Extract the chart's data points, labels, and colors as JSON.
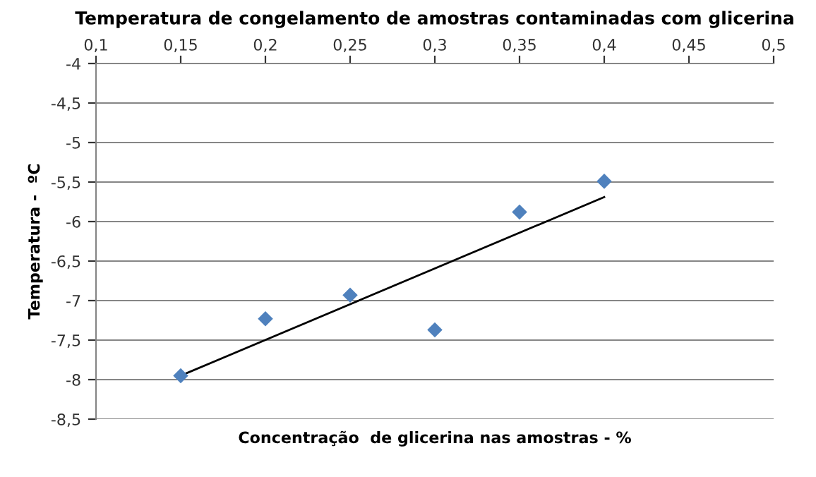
{
  "chart_data": {
    "type": "scatter",
    "title": "Temperatura de congelamento de amostras contaminadas com glicerina",
    "xlabel": "Concentração  de glicerina nas amostras - %",
    "ylabel": "Temperatura -  ºC",
    "x": [
      0.15,
      0.2,
      0.25,
      0.3,
      0.35,
      0.4
    ],
    "series": [
      {
        "color": "#4f81bd",
        "values": [
          -7.95,
          -7.23,
          -6.93,
          -7.37,
          -5.88,
          -5.49
        ],
        "marker": "diamond"
      },
      {
        "type": "line",
        "color": "#000000",
        "x": [
          0.15,
          0.4
        ],
        "values": [
          -7.95,
          -5.69
        ],
        "marker": "none",
        "line_style": "solid"
      }
    ],
    "xlim": [
      0.1,
      0.5
    ],
    "ylim": [
      -8.5,
      -4
    ],
    "xticks": [
      {
        "value": 0.1,
        "label": "0,1"
      },
      {
        "value": 0.15,
        "label": "0,15"
      },
      {
        "value": 0.2,
        "label": "0,2"
      },
      {
        "value": 0.25,
        "label": "0,25"
      },
      {
        "value": 0.3,
        "label": "0,3"
      },
      {
        "value": 0.35,
        "label": "0,35"
      },
      {
        "value": 0.4,
        "label": "0,4"
      },
      {
        "value": 0.45,
        "label": "0,45"
      },
      {
        "value": 0.5,
        "label": "0,5"
      }
    ],
    "yticks": [
      -4,
      {
        "value": -4.5,
        "label": "-4,5"
      },
      -5,
      {
        "value": -5.5,
        "label": "-5,5"
      },
      -6,
      {
        "value": -6.5,
        "label": "-6,5"
      },
      -7,
      {
        "value": -7.5,
        "label": "-7,5"
      },
      -8,
      {
        "value": -8.5,
        "label": "-8,5"
      }
    ],
    "grid": "y",
    "legend": false
  }
}
